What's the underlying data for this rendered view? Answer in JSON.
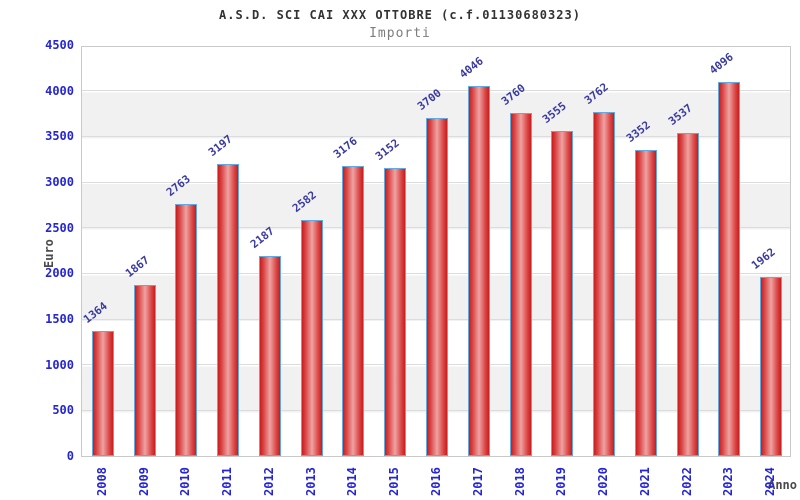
{
  "header": {
    "title": "A.S.D. SCI CAI XXX OTTOBRE (c.f.01130680323)",
    "subtitle": "Importi"
  },
  "chart_data": {
    "type": "bar",
    "title": "A.S.D. SCI CAI XXX OTTOBRE (c.f.01130680323)",
    "subtitle": "Importi",
    "xlabel": "Anno",
    "ylabel": "Euro",
    "categories": [
      "2008",
      "2009",
      "2010",
      "2011",
      "2012",
      "2013",
      "2014",
      "2015",
      "2016",
      "2017",
      "2018",
      "2019",
      "2020",
      "2021",
      "2022",
      "2023",
      "2024"
    ],
    "values": [
      1364,
      1867,
      2763,
      3197,
      2187,
      2582,
      3176,
      3152,
      3700,
      4046,
      3760,
      3555,
      3762,
      3352,
      3537,
      4096,
      1962
    ],
    "ylim": [
      0,
      4500
    ],
    "ytick_step": 500,
    "yticks": [
      0,
      500,
      1000,
      1500,
      2000,
      2500,
      3000,
      3500,
      4000,
      4500
    ],
    "grid": "horizontal-bands",
    "legend": "none",
    "colors": {
      "bar_fill_edge": "#ca1c1c",
      "bar_fill_center": "#f0a2a2",
      "bar_border": "#62a9e0",
      "tick_label": "#2525d4",
      "value_label": "#3a3aa0",
      "band_gray": "#f1f1f1",
      "title": "#333333",
      "subtitle": "#7d7d7d",
      "axis_title": "#4a4a4a"
    }
  }
}
